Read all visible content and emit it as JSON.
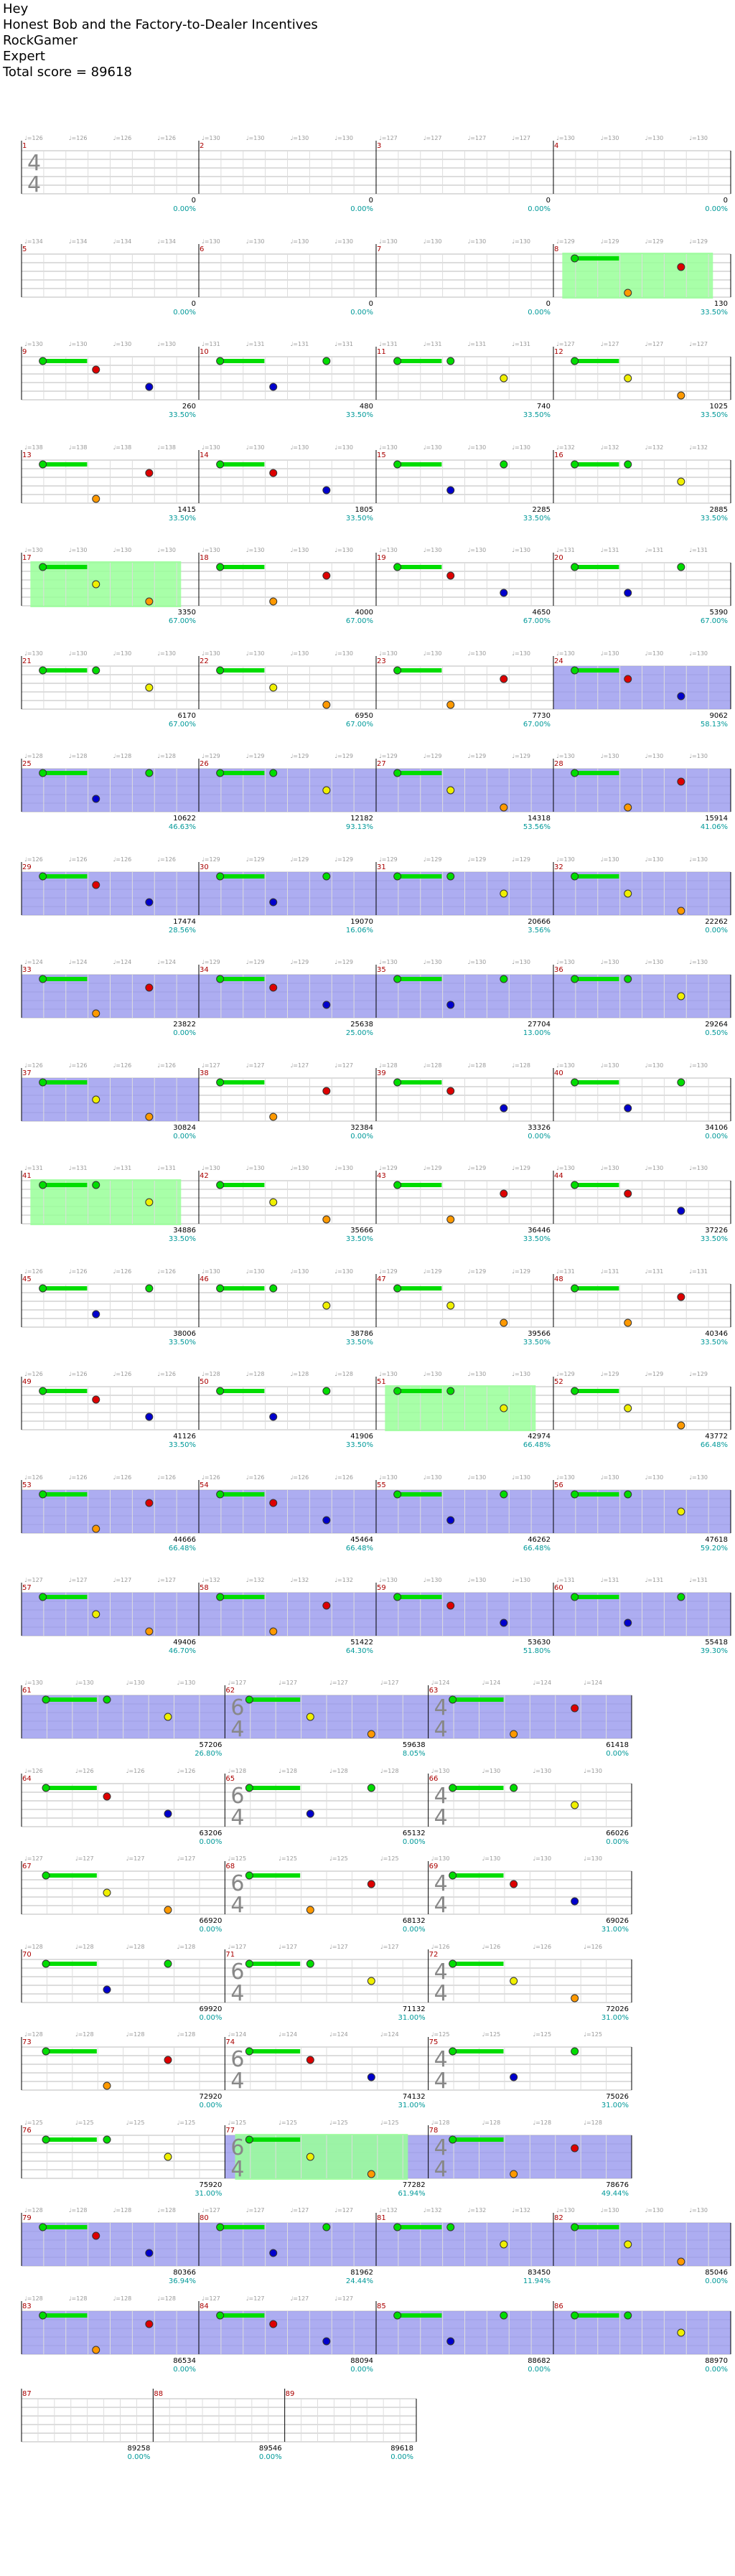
{
  "header": {
    "line1": "Hey",
    "song_title": "Honest Bob and the Factory-to-Dealer Incentives",
    "game": "RockGamer",
    "difficulty": "Expert",
    "total_score": "Total score = 89618"
  },
  "colors": {
    "green": "#00dd00",
    "red": "#dd0000",
    "yellow": "#f0f000",
    "blue": "#0000cc",
    "orange": "#ff9900",
    "overdrive_fill": "#99ff99",
    "solo_fill": "#9999ee",
    "bpm_text": "#999999",
    "measure_num": "#aa0000",
    "score_text": "#000000",
    "percent_text": "#009999"
  },
  "chart_data": {
    "type": "table",
    "description_columns": [
      "measure",
      "bpm",
      "score",
      "percent"
    ],
    "time_signatures": [
      {
        "measure": "1",
        "sig": [
          "4",
          "4"
        ]
      },
      {
        "measure": "62",
        "sig": [
          "6",
          "4"
        ]
      },
      {
        "measure": "63",
        "sig": [
          "4",
          "4"
        ]
      },
      {
        "measure": "65",
        "sig": [
          "6",
          "4"
        ]
      },
      {
        "measure": "66",
        "sig": [
          "4",
          "4"
        ]
      },
      {
        "measure": "68",
        "sig": [
          "6",
          "4"
        ]
      },
      {
        "measure": "69",
        "sig": [
          "4",
          "4"
        ]
      },
      {
        "measure": "71",
        "sig": [
          "6",
          "4"
        ]
      },
      {
        "measure": "72",
        "sig": [
          "4",
          "4"
        ]
      },
      {
        "measure": "74",
        "sig": [
          "6",
          "4"
        ]
      },
      {
        "measure": "75",
        "sig": [
          "4",
          "4"
        ]
      },
      {
        "measure": "77",
        "sig": [
          "6",
          "4"
        ]
      },
      {
        "measure": "78",
        "sig": [
          "4",
          "4"
        ]
      }
    ],
    "measures": [
      {
        "n": "1",
        "bpm": "♩=126",
        "score": "0",
        "pct": "0.00%"
      },
      {
        "n": "2",
        "bpm": "♩=130",
        "score": "0",
        "pct": "0.00%"
      },
      {
        "n": "3",
        "bpm": "♩=127",
        "score": "0",
        "pct": "0.00%"
      },
      {
        "n": "4",
        "bpm": "♩=130",
        "score": "0",
        "pct": "0.00%"
      },
      {
        "n": "5",
        "bpm": "♩=134",
        "score": "0",
        "pct": "0.00%"
      },
      {
        "n": "6",
        "bpm": "♩=130",
        "score": "0",
        "pct": "0.00%"
      },
      {
        "n": "7",
        "bpm": "♩=130",
        "score": "0",
        "pct": "0.00%"
      },
      {
        "n": "8",
        "bpm": "♩=129",
        "score": "130",
        "pct": "33.50%"
      },
      {
        "n": "9",
        "bpm": "♩=130",
        "score": "260",
        "pct": "33.50%"
      },
      {
        "n": "10",
        "bpm": "♩=131",
        "score": "480",
        "pct": "33.50%"
      },
      {
        "n": "11",
        "bpm": "♩=131",
        "score": "740",
        "pct": "33.50%"
      },
      {
        "n": "12",
        "bpm": "♩=127",
        "score": "1025",
        "pct": "33.50%"
      },
      {
        "n": "13",
        "bpm": "♩=138",
        "score": "1415",
        "pct": "33.50%"
      },
      {
        "n": "14",
        "bpm": "♩=130",
        "score": "1805",
        "pct": "33.50%"
      },
      {
        "n": "15",
        "bpm": "♩=130",
        "score": "2285",
        "pct": "33.50%"
      },
      {
        "n": "16",
        "bpm": "♩=132",
        "score": "2885",
        "pct": "33.50%"
      },
      {
        "n": "17",
        "bpm": "♩=130",
        "score": "3350",
        "pct": "67.00%"
      },
      {
        "n": "18",
        "bpm": "♩=130",
        "score": "4000",
        "pct": "67.00%"
      },
      {
        "n": "19",
        "bpm": "♩=130",
        "score": "4650",
        "pct": "67.00%"
      },
      {
        "n": "20",
        "bpm": "♩=131",
        "score": "5390",
        "pct": "67.00%"
      },
      {
        "n": "21",
        "bpm": "♩=130",
        "score": "6170",
        "pct": "67.00%"
      },
      {
        "n": "22",
        "bpm": "♩=130",
        "score": "6950",
        "pct": "67.00%"
      },
      {
        "n": "23",
        "bpm": "♩=130",
        "score": "7730",
        "pct": "67.00%"
      },
      {
        "n": "24",
        "bpm": "♩=130",
        "score": "9062",
        "pct": "58.13%"
      },
      {
        "n": "25",
        "bpm": "♩=128",
        "score": "10622",
        "pct": "46.63%"
      },
      {
        "n": "26",
        "bpm": "♩=129",
        "score": "12182",
        "pct": "93.13%"
      },
      {
        "n": "27",
        "bpm": "♩=129",
        "score": "14318",
        "pct": "53.56%"
      },
      {
        "n": "28",
        "bpm": "♩=130",
        "score": "15914",
        "pct": "41.06%"
      },
      {
        "n": "29",
        "bpm": "♩=126",
        "score": "17474",
        "pct": "28.56%"
      },
      {
        "n": "30",
        "bpm": "♩=129",
        "score": "19070",
        "pct": "16.06%"
      },
      {
        "n": "31",
        "bpm": "♩=129",
        "score": "20666",
        "pct": "3.56%"
      },
      {
        "n": "32",
        "bpm": "♩=130",
        "score": "22262",
        "pct": "0.00%"
      },
      {
        "n": "33",
        "bpm": "♩=124",
        "score": "23822",
        "pct": "0.00%"
      },
      {
        "n": "34",
        "bpm": "♩=129",
        "score": "25638",
        "pct": "25.00%"
      },
      {
        "n": "35",
        "bpm": "♩=130",
        "score": "27704",
        "pct": "13.00%"
      },
      {
        "n": "36",
        "bpm": "♩=130",
        "score": "29264",
        "pct": "0.50%"
      },
      {
        "n": "37",
        "bpm": "♩=126",
        "score": "30824",
        "pct": "0.00%"
      },
      {
        "n": "38",
        "bpm": "♩=127",
        "score": "32384",
        "pct": "0.00%"
      },
      {
        "n": "39",
        "bpm": "♩=128",
        "score": "33326",
        "pct": "0.00%"
      },
      {
        "n": "40",
        "bpm": "♩=130",
        "score": "34106",
        "pct": "0.00%"
      },
      {
        "n": "41",
        "bpm": "♩=131",
        "score": "34886",
        "pct": "33.50%"
      },
      {
        "n": "42",
        "bpm": "♩=130",
        "score": "35666",
        "pct": "33.50%"
      },
      {
        "n": "43",
        "bpm": "♩=129",
        "score": "36446",
        "pct": "33.50%"
      },
      {
        "n": "44",
        "bpm": "♩=130",
        "score": "37226",
        "pct": "33.50%"
      },
      {
        "n": "45",
        "bpm": "♩=126",
        "score": "38006",
        "pct": "33.50%"
      },
      {
        "n": "46",
        "bpm": "♩=130",
        "score": "38786",
        "pct": "33.50%"
      },
      {
        "n": "47",
        "bpm": "♩=129",
        "score": "39566",
        "pct": "33.50%"
      },
      {
        "n": "48",
        "bpm": "♩=131",
        "score": "40346",
        "pct": "33.50%"
      },
      {
        "n": "49",
        "bpm": "♩=126",
        "score": "41126",
        "pct": "33.50%"
      },
      {
        "n": "50",
        "bpm": "♩=128",
        "score": "41906",
        "pct": "33.50%"
      },
      {
        "n": "51",
        "bpm": "♩=130",
        "score": "42974",
        "pct": "66.48%"
      },
      {
        "n": "52",
        "bpm": "♩=129",
        "score": "43772",
        "pct": "66.48%"
      },
      {
        "n": "53",
        "bpm": "♩=126",
        "score": "44666",
        "pct": "66.48%"
      },
      {
        "n": "54",
        "bpm": "♩=126",
        "score": "45464",
        "pct": "66.48%"
      },
      {
        "n": "55",
        "bpm": "♩=130",
        "score": "46262",
        "pct": "66.48%"
      },
      {
        "n": "56",
        "bpm": "♩=130",
        "score": "47618",
        "pct": "59.20%"
      },
      {
        "n": "57",
        "bpm": "♩=127",
        "score": "49406",
        "pct": "46.70%"
      },
      {
        "n": "58",
        "bpm": "♩=132",
        "score": "51422",
        "pct": "64.30%"
      },
      {
        "n": "59",
        "bpm": "♩=130",
        "score": "53630",
        "pct": "51.80%"
      },
      {
        "n": "60",
        "bpm": "♩=131",
        "score": "55418",
        "pct": "39.30%"
      },
      {
        "n": "61",
        "bpm": "♩=130",
        "score": "57206",
        "pct": "26.80%"
      },
      {
        "n": "62",
        "bpm": "♩=127",
        "score": "59638",
        "pct": "8.05%"
      },
      {
        "n": "63",
        "bpm": "♩=124",
        "score": "61418",
        "pct": "0.00%"
      },
      {
        "n": "64",
        "bpm": "♩=126",
        "score": "63206",
        "pct": "0.00%"
      },
      {
        "n": "65",
        "bpm": "♩=128",
        "score": "65132",
        "pct": "0.00%"
      },
      {
        "n": "66",
        "bpm": "♩=130",
        "score": "66026",
        "pct": "0.00%"
      },
      {
        "n": "67",
        "bpm": "♩=127",
        "score": "66920",
        "pct": "0.00%"
      },
      {
        "n": "68",
        "bpm": "♩=125",
        "score": "68132",
        "pct": "0.00%"
      },
      {
        "n": "69",
        "bpm": "♩=130",
        "score": "69026",
        "pct": "31.00%"
      },
      {
        "n": "70",
        "bpm": "♩=128",
        "score": "69920",
        "pct": "0.00%"
      },
      {
        "n": "71",
        "bpm": "♩=127",
        "score": "71132",
        "pct": "31.00%"
      },
      {
        "n": "72",
        "bpm": "♩=126",
        "score": "72026",
        "pct": "31.00%"
      },
      {
        "n": "73",
        "bpm": "♩=128",
        "score": "72920",
        "pct": "0.00%"
      },
      {
        "n": "74",
        "bpm": "♩=124",
        "score": "74132",
        "pct": "31.00%"
      },
      {
        "n": "75",
        "bpm": "♩=125",
        "score": "75026",
        "pct": "31.00%"
      },
      {
        "n": "76",
        "bpm": "♩=125",
        "score": "75920",
        "pct": "31.00%"
      },
      {
        "n": "77",
        "bpm": "♩=125",
        "score": "77282",
        "pct": "61.94%"
      },
      {
        "n": "78",
        "bpm": "♩=128",
        "score": "78676",
        "pct": "49.44%"
      },
      {
        "n": "79",
        "bpm": "♩=128",
        "score": "80366",
        "pct": "36.94%"
      },
      {
        "n": "80",
        "bpm": "♩=127",
        "score": "81962",
        "pct": "24.44%"
      },
      {
        "n": "81",
        "bpm": "♩=132",
        "score": "83450",
        "pct": "11.94%"
      },
      {
        "n": "82",
        "bpm": "♩=130",
        "score": "85046",
        "pct": "0.00%"
      },
      {
        "n": "83",
        "bpm": "♩=128",
        "score": "86534",
        "pct": "0.00%"
      },
      {
        "n": "84",
        "bpm": "♩=127",
        "score": "88094",
        "pct": "0.00%"
      },
      {
        "n": "85",
        "bpm": "",
        "score": "88682",
        "pct": "0.00%"
      },
      {
        "n": "86",
        "bpm": "",
        "score": "88970",
        "pct": "0.00%"
      },
      {
        "n": "87",
        "bpm": "",
        "score": "89258",
        "pct": "0.00%"
      },
      {
        "n": "88",
        "bpm": "",
        "score": "89546",
        "pct": "0.00%"
      },
      {
        "n": "89",
        "bpm": "",
        "score": "89618",
        "pct": "0.00%"
      }
    ]
  }
}
